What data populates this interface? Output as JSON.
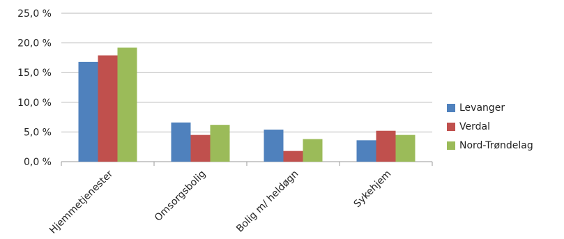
{
  "chart_data": {
    "type": "bar",
    "categories": [
      "Hjemmetjenester",
      "Omsorgsbolig",
      "Bolig m/ heldøgn",
      "Sykehjem"
    ],
    "series": [
      {
        "name": "Levanger",
        "color": "#4F81BD",
        "values": [
          16.8,
          6.6,
          5.4,
          3.6
        ]
      },
      {
        "name": "Verdal",
        "color": "#C0504D",
        "values": [
          17.9,
          4.5,
          1.8,
          5.2
        ]
      },
      {
        "name": "Nord-Trøndelag",
        "color": "#9BBB59",
        "values": [
          19.2,
          6.2,
          3.8,
          4.5
        ]
      }
    ],
    "yticks": [
      "0,0 %",
      "5,0 %",
      "10,0 %",
      "15,0 %",
      "20,0 %",
      "25,0 %"
    ],
    "ylim": [
      0,
      25
    ],
    "grid": true,
    "legend_position": "right"
  }
}
